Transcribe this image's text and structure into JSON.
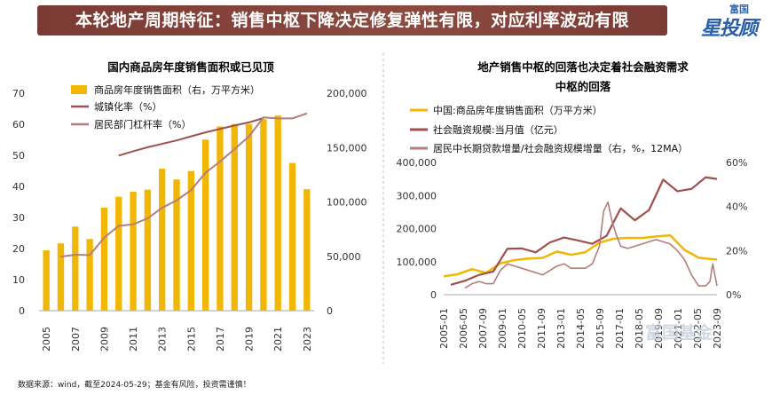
{
  "banner": {
    "title": "本轮地产周期特征：销售中枢下降决定修复弹性有限，对应利率波动有限"
  },
  "logo": {
    "top": "富国",
    "main": "星投顾"
  },
  "watermark": "富国基金",
  "footer": "数据来源：wind，截至2024-05-29；基金有风险，投资需谨慎！",
  "colors": {
    "gold": "#f2b705",
    "brown": "#a0504c",
    "pink": "#b27f7c",
    "grid": "#e6e6e6"
  },
  "chart_data": [
    {
      "type": "bar",
      "title": "国内商品房年度销售面积或已见顶",
      "categories": [
        "2005",
        "2006",
        "2007",
        "2008",
        "2009",
        "2010",
        "2011",
        "2012",
        "2013",
        "2014",
        "2015",
        "2016",
        "2017",
        "2018",
        "2019",
        "2020",
        "2021",
        "2022",
        "2023"
      ],
      "x_tick_labels": [
        "2005",
        "2007",
        "2009",
        "2011",
        "2013",
        "2015",
        "2017",
        "2019",
        "2021",
        "2023"
      ],
      "left_axis": {
        "range": [
          0,
          70
        ],
        "ticks": [
          "0",
          "10",
          "20",
          "30",
          "40",
          "50",
          "60",
          "70"
        ]
      },
      "right_axis": {
        "range": [
          0,
          200000
        ],
        "ticks": [
          "0",
          "50,000",
          "100,000",
          "150,000",
          "200,000"
        ]
      },
      "legend": [
        "商品房年度销售面积（右，万平方米）",
        "城镇化率（%）",
        "居民部门杠杆率（%）"
      ],
      "series": [
        {
          "name": "商品房年度销售面积（右，万平方米）",
          "axis": "right",
          "kind": "bar",
          "values": [
            55487,
            61857,
            77355,
            65970,
            94755,
            104765,
            109366,
            111304,
            130551,
            120649,
            128495,
            157349,
            169408,
            171654,
            171558,
            176086,
            179433,
            135837,
            111735
          ]
        },
        {
          "name": "城镇化率（%）",
          "axis": "left",
          "kind": "line",
          "values": [
            null,
            null,
            null,
            null,
            null,
            49.9,
            51.3,
            52.6,
            53.7,
            54.8,
            56.1,
            57.4,
            58.5,
            59.6,
            60.6,
            62.0,
            null,
            null,
            null
          ]
        },
        {
          "name": "居民部门杠杆率（%）",
          "axis": "left",
          "kind": "line",
          "values": [
            null,
            17.4,
            18.0,
            17.9,
            23.5,
            27.3,
            27.8,
            29.7,
            33.1,
            35.5,
            38.8,
            44.4,
            48.0,
            52.0,
            56.1,
            62.2,
            61.9,
            61.9,
            63.5
          ]
        }
      ]
    },
    {
      "type": "line",
      "title": "地产销售中枢的回落也决定着社会融资需求中枢的回落",
      "title_line1": "地产销售中枢的回落也决定着社会融资需求",
      "title_line2": "中枢的回落",
      "x_tick_labels": [
        "2005-01",
        "2006-05",
        "2007-09",
        "2009-01",
        "2010-05",
        "2011-09",
        "2013-01",
        "2014-05",
        "2015-09",
        "2017-01",
        "2018-05",
        "2019-09",
        "2021-01",
        "2022-05",
        "2023-09"
      ],
      "left_axis": {
        "range": [
          0,
          400000
        ],
        "ticks": [
          "0",
          "100,000",
          "200,000",
          "300,000",
          "400,000"
        ]
      },
      "right_axis": {
        "range": [
          0,
          60
        ],
        "ticks": [
          "0%",
          "20%",
          "40%",
          "60%"
        ]
      },
      "legend": [
        "中国:商品房年度销售面积（万平方米）",
        "社会融资规模:当月值（亿元）",
        "居民中长期贷款增量/社会融资规模增量（右，%，12MA）"
      ],
      "series": [
        {
          "name": "中国:商品房年度销售面积（万平方米）",
          "axis": "left",
          "x": [
            2005,
            2006,
            2007,
            2008,
            2009,
            2010,
            2011,
            2012,
            2013,
            2014,
            2015,
            2016,
            2017,
            2018,
            2019,
            2020,
            2021,
            2022,
            2023,
            2024.3
          ],
          "values": [
            55487,
            61857,
            77355,
            65970,
            94755,
            104765,
            109366,
            111304,
            130551,
            120649,
            128495,
            157349,
            169408,
            171654,
            171558,
            176086,
            179433,
            135837,
            111735,
            106000
          ]
        },
        {
          "name": "社会融资规模:当月值（亿元）",
          "axis": "left",
          "x": [
            2005.5,
            2006.5,
            2007.5,
            2008.5,
            2009.5,
            2010.5,
            2011.5,
            2012.5,
            2013.5,
            2014.5,
            2015.5,
            2016.5,
            2017.5,
            2018.5,
            2019.5,
            2020.5,
            2021.5,
            2022.5,
            2023.5,
            2024.3
          ],
          "values": [
            30000,
            42000,
            60000,
            70000,
            139000,
            140000,
            128000,
            158000,
            173000,
            164000,
            154000,
            178000,
            261000,
            225000,
            256000,
            348000,
            313000,
            320000,
            355000,
            350000
          ]
        },
        {
          "name": "居民中长期贷款增量/社会融资规模增量（右，%，12MA）",
          "axis": "right",
          "x": [
            2006.5,
            2007.0,
            2007.5,
            2008.0,
            2008.5,
            2009.0,
            2009.5,
            2010.0,
            2010.5,
            2011.0,
            2011.5,
            2012.0,
            2012.5,
            2013.0,
            2013.5,
            2014.0,
            2014.5,
            2015.0,
            2015.5,
            2016.0,
            2016.3,
            2016.6,
            2016.9,
            2017.2,
            2017.5,
            2018.0,
            2018.5,
            2019.0,
            2019.5,
            2020.0,
            2020.5,
            2021.0,
            2021.5,
            2022.0,
            2022.5,
            2023.0,
            2023.5,
            2023.8,
            2024.0,
            2024.3
          ],
          "values": [
            3,
            5,
            6,
            5,
            5,
            11,
            14,
            13,
            12,
            11,
            10,
            9,
            11,
            13,
            14,
            12,
            12,
            12,
            14,
            22,
            38,
            42,
            33,
            27,
            22,
            21,
            22,
            23,
            24,
            25,
            24,
            23,
            20,
            16,
            9,
            4,
            4,
            6,
            14,
            4
          ]
        }
      ]
    }
  ]
}
